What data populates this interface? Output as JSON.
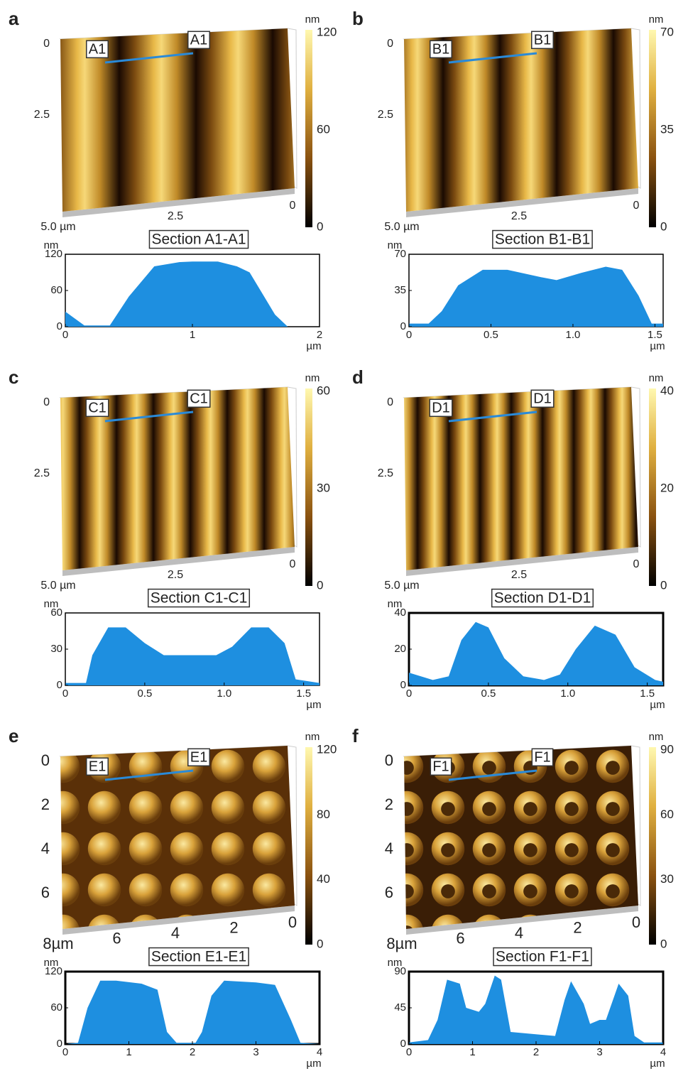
{
  "panels": [
    {
      "label": "a",
      "y_axis": [
        "0",
        "2.5"
      ],
      "x_axis": [
        "5.0 µm",
        "2.5",
        "0"
      ],
      "colorbar": {
        "unit": "nm",
        "ticks": [
          "120",
          "60",
          "0"
        ]
      },
      "markers": [
        "A1",
        "A1"
      ],
      "section": "Section A1-A1"
    },
    {
      "label": "b",
      "y_axis": [
        "0",
        "2.5"
      ],
      "x_axis": [
        "5.0 µm",
        "2.5",
        "0"
      ],
      "colorbar": {
        "unit": "nm",
        "ticks": [
          "70",
          "35",
          "0"
        ]
      },
      "markers": [
        "B1",
        "B1"
      ],
      "section": "Section B1-B1"
    },
    {
      "label": "c",
      "y_axis": [
        "0",
        "2.5"
      ],
      "x_axis": [
        "5.0 µm",
        "2.5",
        "0"
      ],
      "colorbar": {
        "unit": "nm",
        "ticks": [
          "60",
          "30",
          "0"
        ]
      },
      "markers": [
        "C1",
        "C1"
      ],
      "section": "Section C1-C1"
    },
    {
      "label": "d",
      "y_axis": [
        "0",
        "2.5"
      ],
      "x_axis": [
        "5.0 µm",
        "2.5",
        "0"
      ],
      "colorbar": {
        "unit": "nm",
        "ticks": [
          "40",
          "20",
          "0"
        ]
      },
      "markers": [
        "D1",
        "D1"
      ],
      "section": "Section D1-D1"
    },
    {
      "label": "e",
      "y_axis": [
        "0",
        "2",
        "4",
        "6"
      ],
      "x_axis": [
        "8µm",
        "6",
        "4",
        "2",
        "0"
      ],
      "colorbar": {
        "unit": "nm",
        "ticks": [
          "120",
          "80",
          "40",
          "0"
        ]
      },
      "markers": [
        "E1",
        "E1"
      ],
      "section": "Section E1-E1"
    },
    {
      "label": "f",
      "y_axis": [
        "0",
        "2",
        "4",
        "6"
      ],
      "x_axis": [
        "8µm",
        "6",
        "4",
        "2",
        "0"
      ],
      "colorbar": {
        "unit": "nm",
        "ticks": [
          "90",
          "60",
          "30",
          "0"
        ]
      },
      "markers": [
        "F1",
        "F1"
      ],
      "section": "Section F1-F1"
    }
  ],
  "chart_data": [
    {
      "type": "area",
      "color": "#1e8fe0",
      "y_unit": "nm",
      "x_unit": "µm",
      "xlim": [
        0,
        2
      ],
      "xticks": [
        0,
        1,
        2
      ],
      "ylim": [
        0,
        120
      ],
      "yticks": [
        0,
        60,
        120
      ],
      "x": [
        0,
        0.15,
        0.35,
        0.5,
        0.7,
        0.9,
        1.0,
        1.2,
        1.35,
        1.45,
        1.55,
        1.65,
        1.75,
        2.0
      ],
      "values": [
        25,
        2,
        2,
        50,
        100,
        107,
        108,
        108,
        100,
        90,
        55,
        20,
        0,
        0
      ]
    },
    {
      "type": "area",
      "color": "#1e8fe0",
      "y_unit": "nm",
      "x_unit": "µm",
      "xlim": [
        0,
        1.55
      ],
      "xticks": [
        0,
        0.5,
        {
          "value": 1,
          "label": "1.0"
        },
        1.5
      ],
      "ylim": [
        0,
        70
      ],
      "yticks": [
        0,
        35,
        70
      ],
      "x": [
        0,
        0.12,
        0.2,
        0.3,
        0.45,
        0.6,
        0.8,
        0.9,
        1.05,
        1.2,
        1.3,
        1.4,
        1.48,
        1.55
      ],
      "values": [
        3,
        3,
        15,
        40,
        55,
        55,
        48,
        45,
        52,
        58,
        55,
        30,
        3,
        3
      ]
    },
    {
      "type": "area",
      "color": "#1e8fe0",
      "y_unit": "nm",
      "x_unit": "µm",
      "xlim": [
        0,
        1.6
      ],
      "xticks": [
        0,
        0.5,
        {
          "value": 1,
          "label": "1.0"
        },
        1.5
      ],
      "ylim": [
        0,
        60
      ],
      "yticks": [
        0,
        30,
        60
      ],
      "x": [
        0,
        0.13,
        0.17,
        0.27,
        0.38,
        0.5,
        0.62,
        0.95,
        1.05,
        1.17,
        1.28,
        1.38,
        1.45,
        1.6
      ],
      "values": [
        2,
        2,
        25,
        48,
        48,
        35,
        25,
        25,
        32,
        48,
        48,
        35,
        5,
        2
      ]
    },
    {
      "type": "area",
      "color": "#1e8fe0",
      "y_unit": "nm",
      "x_unit": "µm",
      "xlim": [
        0,
        1.6
      ],
      "xticks": [
        0,
        0.5,
        {
          "value": 1,
          "label": "1.0"
        },
        1.5
      ],
      "ylim": [
        0,
        40
      ],
      "yticks": [
        0,
        20,
        40
      ],
      "x": [
        0,
        0.15,
        0.25,
        0.33,
        0.42,
        0.5,
        0.6,
        0.72,
        0.85,
        0.95,
        1.05,
        1.17,
        1.3,
        1.42,
        1.55,
        1.6
      ],
      "values": [
        7,
        3,
        5,
        25,
        35,
        32,
        15,
        5,
        3,
        6,
        20,
        33,
        28,
        10,
        3,
        2
      ]
    },
    {
      "type": "area",
      "color": "#1e8fe0",
      "y_unit": "nm",
      "x_unit": "µm",
      "xlim": [
        0,
        4
      ],
      "xticks": [
        0,
        1,
        2,
        3,
        4
      ],
      "ylim": [
        0,
        120
      ],
      "yticks": [
        0,
        60,
        120
      ],
      "x": [
        0,
        0.2,
        0.35,
        0.55,
        0.8,
        1.2,
        1.45,
        1.6,
        1.75,
        2.05,
        2.15,
        2.3,
        2.5,
        3.0,
        3.3,
        3.55,
        3.7,
        4.0
      ],
      "values": [
        0,
        2,
        60,
        105,
        105,
        100,
        90,
        20,
        2,
        2,
        20,
        80,
        105,
        102,
        98,
        40,
        2,
        0
      ]
    },
    {
      "type": "area",
      "color": "#1e8fe0",
      "y_unit": "nm",
      "x_unit": "µm",
      "xlim": [
        0,
        4
      ],
      "xticks": [
        0,
        1,
        2,
        3,
        4
      ],
      "ylim": [
        0,
        90
      ],
      "yticks": [
        0,
        45,
        90
      ],
      "x": [
        0,
        0.3,
        0.45,
        0.6,
        0.8,
        0.9,
        1.1,
        1.2,
        1.35,
        1.45,
        1.6,
        2.3,
        2.45,
        2.55,
        2.75,
        2.85,
        3.0,
        3.1,
        3.3,
        3.45,
        3.55,
        3.7,
        4.0
      ],
      "values": [
        2,
        5,
        30,
        80,
        75,
        45,
        40,
        50,
        85,
        80,
        15,
        10,
        55,
        78,
        50,
        25,
        30,
        30,
        75,
        60,
        10,
        2,
        2
      ]
    }
  ]
}
